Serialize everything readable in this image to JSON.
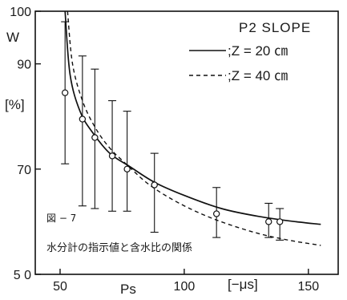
{
  "chart_data": {
    "type": "line",
    "title": "P2 SLOPE",
    "xlabel": "Ps",
    "xunit": "[−μs]",
    "ylabel": "W",
    "yunit": "[%]",
    "xlim": [
      40,
      162
    ],
    "ylim": [
      50,
      100
    ],
    "x_ticks": [
      50,
      100,
      150
    ],
    "y_ticks": [
      50,
      70,
      90,
      100
    ],
    "y_tick_labels": [
      "5 0",
      "70",
      "90",
      "100"
    ],
    "grid": false,
    "legend_placement": "top-right",
    "legend": [
      {
        "label": ";Z = 20 ㎝",
        "style": "solid"
      },
      {
        "label": ";Z = 40 ㎝",
        "style": "dashed"
      }
    ],
    "figure_label": "図 − 7",
    "caption": "水分計の指示値と含水比の関係",
    "series": [
      {
        "style": "solid",
        "points": [
          [
            52,
            100
          ],
          [
            54,
            88
          ],
          [
            58,
            81
          ],
          [
            63,
            77
          ],
          [
            70,
            73
          ],
          [
            78,
            70.5
          ],
          [
            88,
            67.5
          ],
          [
            100,
            65
          ],
          [
            115,
            62.5
          ],
          [
            130,
            61
          ],
          [
            145,
            60
          ],
          [
            155,
            59.5
          ]
        ]
      },
      {
        "style": "dashed",
        "points": [
          [
            53,
            100
          ],
          [
            55,
            90
          ],
          [
            59,
            83
          ],
          [
            64,
            78
          ],
          [
            70,
            74
          ],
          [
            77,
            70.8
          ],
          [
            86,
            67
          ],
          [
            98,
            63.5
          ],
          [
            112,
            60.5
          ],
          [
            128,
            58
          ],
          [
            142,
            56.5
          ],
          [
            155,
            55.5
          ]
        ]
      }
    ],
    "observations": [
      {
        "x": 52,
        "y": 84.5,
        "err_low": 71,
        "err_high": 98
      },
      {
        "x": 59,
        "y": 79.5,
        "err_low": 63,
        "err_high": 91.5
      },
      {
        "x": 64,
        "y": 76,
        "err_low": 62.5,
        "err_high": 89
      },
      {
        "x": 71,
        "y": 72.5,
        "err_low": 62,
        "err_high": 83
      },
      {
        "x": 77,
        "y": 70,
        "err_low": 62,
        "err_high": 81
      },
      {
        "x": 88,
        "y": 67,
        "err_low": 58,
        "err_high": 73
      },
      {
        "x": 113,
        "y": 61.5,
        "err_low": 57,
        "err_high": 66.5
      },
      {
        "x": 134,
        "y": 60,
        "err_low": 57,
        "err_high": 63.5
      },
      {
        "x": 138.5,
        "y": 60,
        "err_low": 56.5,
        "err_high": 62.5
      }
    ]
  }
}
